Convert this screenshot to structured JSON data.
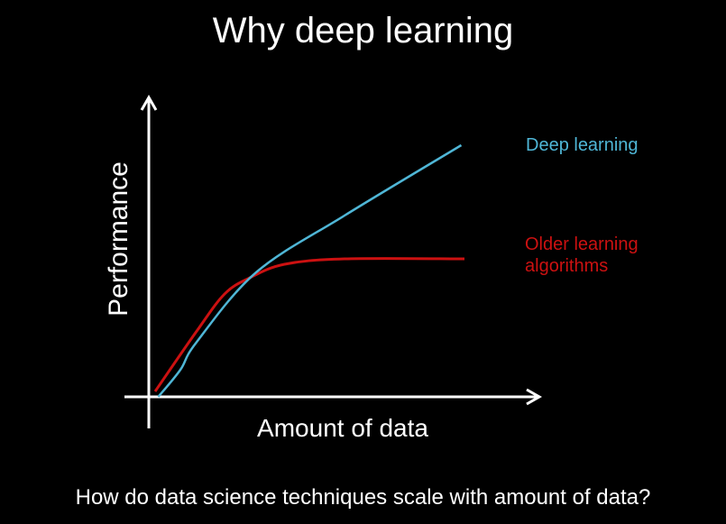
{
  "slide": {
    "title": "Why deep learning",
    "caption": "How do data science techniques scale with amount of data?"
  },
  "chart_data": {
    "type": "line",
    "title": "Why deep learning",
    "xlabel": "Amount of data",
    "ylabel": "Performance",
    "xlim": [
      0,
      10
    ],
    "ylim": [
      0,
      10
    ],
    "grid": false,
    "axis_ticks": false,
    "legend_placement": "inline-right",
    "series": [
      {
        "name": "Deep learning",
        "color": "#4fb6d6",
        "x": [
          0.3,
          1.0,
          1.5,
          3.4,
          6.2,
          9.9
        ],
        "y": [
          0.0,
          1.0,
          2.0,
          4.6,
          6.7,
          9.3
        ]
      },
      {
        "name_lines": [
          "Older learning",
          "algorithms"
        ],
        "name": "Older learning algorithms",
        "color": "#cc1111",
        "x": [
          0.2,
          1.5,
          2.4,
          3.2,
          4.3,
          6.2,
          10.0
        ],
        "y": [
          0.2,
          2.4,
          3.8,
          4.4,
          4.9,
          5.1,
          5.1
        ]
      }
    ]
  }
}
